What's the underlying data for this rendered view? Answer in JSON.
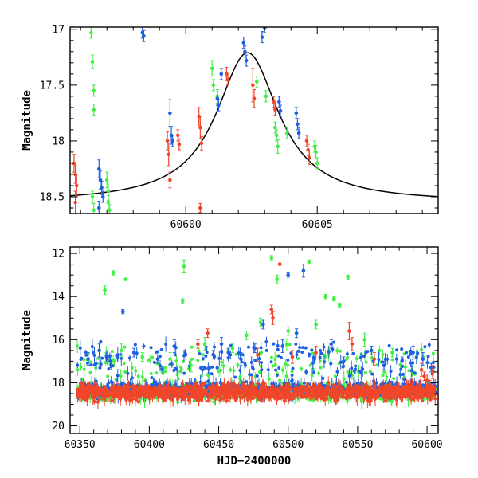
{
  "colors": {
    "g": "#44ee44",
    "b": "#1f5fe0",
    "r": "#f0462a",
    "model": "#000000"
  },
  "chart_data": [
    {
      "id": "top",
      "type": "scatter",
      "xlabel": "",
      "ylabel": "Magnitude",
      "xlim": [
        60595.6,
        60609.6
      ],
      "ylim": [
        18.65,
        16.98
      ],
      "y_inverted": true,
      "xticks": [
        60600,
        60605
      ],
      "yticks": [
        17,
        17.5,
        18,
        18.5
      ],
      "ytick_labels": [
        "17",
        "17.5",
        "18",
        "18.5"
      ],
      "model_curve": {
        "type": "line",
        "color": "model",
        "baseline": 18.55,
        "peak_mag": 17.21,
        "peak_x": 60602.35,
        "width": 1.45
      },
      "series": [
        {
          "band": "g",
          "points": [
            [
              60596.4,
              17.03,
              0.05
            ],
            [
              60596.45,
              17.29,
              0.06
            ],
            [
              60596.5,
              17.55,
              0.05
            ],
            [
              60596.5,
              17.72,
              0.05
            ],
            [
              60596.45,
              18.5,
              0.05
            ],
            [
              60596.5,
              18.62,
              0.06
            ],
            [
              60597.0,
              18.35,
              0.07
            ],
            [
              60597.05,
              18.45,
              0.08
            ],
            [
              60597.05,
              18.55,
              0.06
            ],
            [
              60597.1,
              18.62,
              0.05
            ],
            [
              60601.0,
              17.35,
              0.07
            ],
            [
              60601.05,
              17.5,
              0.05
            ],
            [
              60601.2,
              17.6,
              0.06
            ],
            [
              60602.7,
              17.47,
              0.05
            ],
            [
              60603.05,
              17.6,
              0.05
            ],
            [
              60603.4,
              17.88,
              0.05
            ],
            [
              60603.45,
              17.95,
              0.05
            ],
            [
              60603.5,
              18.05,
              0.06
            ],
            [
              60603.85,
              17.93,
              0.05
            ],
            [
              60604.9,
              18.05,
              0.05
            ],
            [
              60604.95,
              18.1,
              0.06
            ],
            [
              60605.0,
              18.2,
              0.05
            ]
          ]
        },
        {
          "band": "b",
          "points": [
            [
              60596.7,
              18.25,
              0.08
            ],
            [
              60596.75,
              18.35,
              0.08
            ],
            [
              60596.8,
              18.42,
              0.06
            ],
            [
              60596.85,
              18.5,
              0.05
            ],
            [
              60596.7,
              18.6,
              0.06
            ],
            [
              60598.35,
              17.03,
              0.05
            ],
            [
              60598.4,
              17.06,
              0.05
            ],
            [
              60599.4,
              17.75,
              0.12
            ],
            [
              60599.45,
              17.95,
              0.08
            ],
            [
              60599.5,
              18.0,
              0.05
            ],
            [
              60601.2,
              17.62,
              0.06
            ],
            [
              60601.25,
              17.68,
              0.05
            ],
            [
              60601.35,
              17.4,
              0.05
            ],
            [
              60602.2,
              17.12,
              0.05
            ],
            [
              60602.25,
              17.2,
              0.05
            ],
            [
              60602.3,
              17.28,
              0.05
            ],
            [
              60602.9,
              17.07,
              0.05
            ],
            [
              60603.0,
              16.99,
              0.04
            ],
            [
              60603.55,
              17.65,
              0.05
            ],
            [
              60603.6,
              17.73,
              0.05
            ],
            [
              60604.2,
              17.75,
              0.05
            ],
            [
              60604.25,
              17.85,
              0.05
            ],
            [
              60604.3,
              17.93,
              0.05
            ]
          ]
        },
        {
          "band": "r",
          "points": [
            [
              60595.75,
              18.2,
              0.08
            ],
            [
              60595.8,
              18.3,
              0.08
            ],
            [
              60595.85,
              18.4,
              0.1
            ],
            [
              60595.8,
              18.55,
              0.1
            ],
            [
              60599.3,
              18.0,
              0.08
            ],
            [
              60599.35,
              18.12,
              0.1
            ],
            [
              60599.4,
              18.35,
              0.07
            ],
            [
              60599.7,
              17.95,
              0.05
            ],
            [
              60599.75,
              18.03,
              0.05
            ],
            [
              60600.5,
              17.78,
              0.08
            ],
            [
              60600.55,
              17.88,
              0.1
            ],
            [
              60600.6,
              18.02,
              0.06
            ],
            [
              60600.55,
              18.6,
              0.04
            ],
            [
              60601.55,
              17.4,
              0.06
            ],
            [
              60601.6,
              17.45,
              0.05
            ],
            [
              60602.55,
              17.5,
              0.15
            ],
            [
              60602.6,
              17.62,
              0.08
            ],
            [
              60603.35,
              17.65,
              0.05
            ],
            [
              60603.4,
              17.72,
              0.05
            ],
            [
              60604.6,
              18.0,
              0.05
            ],
            [
              60604.65,
              18.08,
              0.05
            ],
            [
              60604.7,
              18.15,
              0.06
            ]
          ]
        }
      ]
    },
    {
      "id": "bottom",
      "type": "scatter",
      "xlabel": "HJD−2400000",
      "ylabel": "Magnitude",
      "xlim": [
        60343,
        60608
      ],
      "ylim": [
        20.35,
        11.7
      ],
      "y_inverted": true,
      "xticks": [
        60350,
        60400,
        60450,
        60500,
        60550,
        60600
      ],
      "yticks": [
        12,
        14,
        16,
        18,
        20
      ],
      "ytick_labels": [
        "12",
        "14",
        "16",
        "18",
        "20"
      ],
      "baseline_band": {
        "center": 18.45,
        "spread": 0.9,
        "from": 60348,
        "to": 60606
      },
      "series": [
        {
          "band": "g",
          "points": [
            [
              60368,
              13.7,
              0.2
            ],
            [
              60374,
              12.9,
              0.1
            ],
            [
              60383,
              13.2,
              0.05
            ],
            [
              60425,
              12.6,
              0.3
            ],
            [
              60424,
              14.2,
              0.1
            ],
            [
              60488,
              12.2,
              0.1
            ],
            [
              60492,
              13.2,
              0.2
            ],
            [
              60515,
              12.4,
              0.1
            ],
            [
              60527,
              14.0,
              0.1
            ],
            [
              60533,
              14.1,
              0.1
            ],
            [
              60537,
              14.4,
              0.1
            ],
            [
              60543,
              13.1,
              0.1
            ],
            [
              60480,
              15.2,
              0.2
            ],
            [
              60500,
              15.6,
              0.2
            ],
            [
              60520,
              15.3,
              0.2
            ],
            [
              60440,
              16.2,
              0.3
            ],
            [
              60460,
              16.4,
              0.2
            ],
            [
              60470,
              15.8,
              0.2
            ],
            [
              60555,
              16.0,
              0.3
            ],
            [
              60575,
              16.6,
              0.2
            ],
            [
              60380,
              16.5,
              0.3
            ],
            [
              60395,
              16.8,
              0.2
            ],
            [
              60415,
              16.9,
              0.3
            ],
            [
              60430,
              17.2,
              0.3
            ]
          ]
        },
        {
          "band": "b",
          "points": [
            [
              60381,
              14.7,
              0.1
            ],
            [
              60511,
              12.8,
              0.3
            ],
            [
              60500,
              13.0,
              0.1
            ],
            [
              60452,
              16.2,
              0.3
            ],
            [
              60457,
              16.6,
              0.2
            ],
            [
              60482,
              15.3,
              0.2
            ],
            [
              60506,
              15.7,
              0.2
            ],
            [
              60531,
              16.2,
              0.2
            ],
            [
              60560,
              16.5,
              0.2
            ],
            [
              60590,
              16.6,
              0.3
            ],
            [
              60356,
              16.9,
              0.3
            ],
            [
              60364,
              16.5,
              0.3
            ],
            [
              60372,
              17.0,
              0.3
            ],
            [
              60389,
              16.6,
              0.2
            ],
            [
              60406,
              16.9,
              0.2
            ],
            [
              60418,
              16.3,
              0.3
            ],
            [
              60446,
              16.7,
              0.2
            ],
            [
              60466,
              16.9,
              0.3
            ],
            [
              60476,
              16.4,
              0.2
            ],
            [
              60496,
              16.3,
              0.3
            ],
            [
              60540,
              17.0,
              0.2
            ],
            [
              60569,
              17.2,
              0.2
            ],
            [
              60582,
              17.0,
              0.2
            ],
            [
              60597,
              16.9,
              0.3
            ],
            [
              60603,
              17.3,
              0.2
            ]
          ]
        },
        {
          "band": "r",
          "points": [
            [
              60494,
              12.5,
              0.05
            ],
            [
              60488,
              14.6,
              0.2
            ],
            [
              60489,
              15.0,
              0.3
            ],
            [
              60442,
              15.7,
              0.2
            ],
            [
              60435,
              16.2,
              0.2
            ],
            [
              60478,
              16.7,
              0.3
            ],
            [
              60544,
              15.6,
              0.4
            ],
            [
              60546,
              16.2,
              0.3
            ],
            [
              60520,
              16.6,
              0.3
            ],
            [
              60503,
              16.8,
              0.3
            ],
            [
              60562,
              16.9,
              0.3
            ],
            [
              60596,
              17.4,
              0.3
            ],
            [
              60598,
              17.7,
              0.2
            ],
            [
              60600,
              17.9,
              0.3
            ],
            [
              60602,
              18.1,
              0.2
            ],
            [
              60604,
              17.5,
              0.3
            ]
          ]
        }
      ]
    }
  ]
}
